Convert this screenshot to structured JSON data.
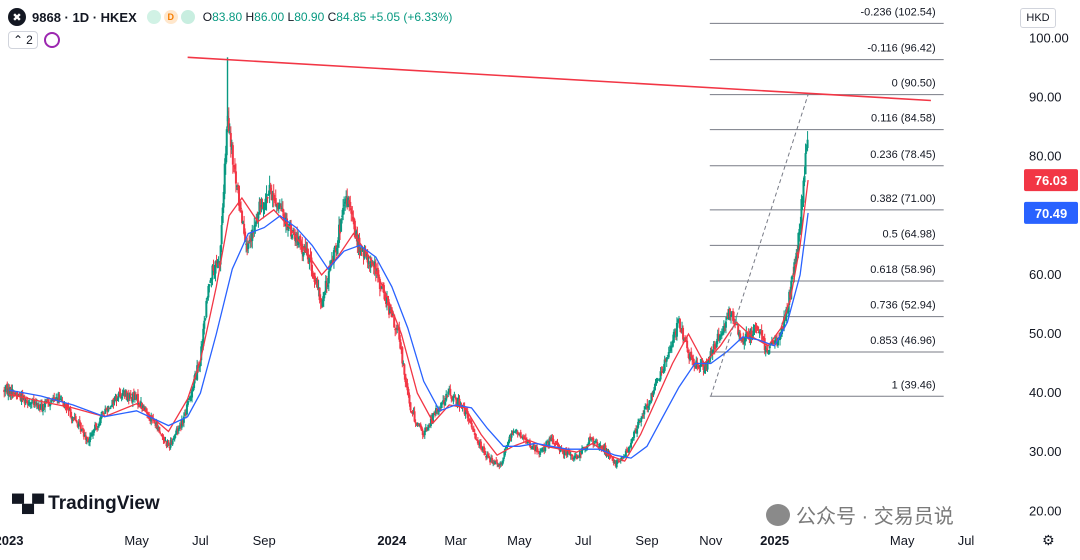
{
  "header": {
    "logo_glyph": "✖",
    "title": "9868 · 1D · HKEX",
    "badge_1": "",
    "badge_2": "D",
    "badge_3": "",
    "ohlc": {
      "o_label": "O",
      "o": "83.80",
      "h_label": "H",
      "h": "86.00",
      "l_label": "L",
      "l": "80.90",
      "c_label": "C",
      "c": "84.85",
      "change": "+5.05 (+6.33%)"
    },
    "indicator_count": "2"
  },
  "currency": "HKD",
  "watermark": "TradingView",
  "wechat_text": "公众号 · 交易员说",
  "price_badges": [
    {
      "value": "76.03",
      "color": "#f23645",
      "y": 76.03
    },
    {
      "value": "70.49",
      "color": "#2962ff",
      "y": 70.49
    }
  ],
  "chart_data": {
    "type": "line",
    "y_axis_side": "right",
    "ylim": [
      16.5,
      106.5
    ],
    "y_ticks": [
      {
        "value": 20,
        "label": "20.00"
      },
      {
        "value": 30,
        "label": "30.00"
      },
      {
        "value": 40,
        "label": "40.00"
      },
      {
        "value": 50,
        "label": "50.00"
      },
      {
        "value": 60,
        "label": "60.00"
      },
      {
        "value": 70,
        "label": "70.00"
      },
      {
        "value": 80,
        "label": "80.00"
      },
      {
        "value": 90,
        "label": "90.00"
      },
      {
        "value": 100,
        "label": "100.00"
      }
    ],
    "x_ticks": [
      {
        "label": "2023",
        "t": -1.0,
        "bold": true
      },
      {
        "label": "May",
        "t": 3.0,
        "bold": false
      },
      {
        "label": "Jul",
        "t": 5.0,
        "bold": false
      },
      {
        "label": "Sep",
        "t": 7.0,
        "bold": false
      },
      {
        "label": "2024",
        "t": 11.0,
        "bold": true
      },
      {
        "label": "Mar",
        "t": 13.0,
        "bold": false
      },
      {
        "label": "May",
        "t": 15.0,
        "bold": false
      },
      {
        "label": "Jul",
        "t": 17.0,
        "bold": false
      },
      {
        "label": "Sep",
        "t": 19.0,
        "bold": false
      },
      {
        "label": "Nov",
        "t": 21.0,
        "bold": false
      },
      {
        "label": "2025",
        "t": 23.0,
        "bold": true
      },
      {
        "label": "May",
        "t": 27.0,
        "bold": false
      },
      {
        "label": "Jul",
        "t": 29.0,
        "bold": false
      }
    ],
    "fib_levels": [
      {
        "ratio": "-0.236",
        "price": 102.54,
        "label": "-0.236 (102.54)"
      },
      {
        "ratio": "-0.116",
        "price": 96.42,
        "label": "-0.116 (96.42)"
      },
      {
        "ratio": "0",
        "price": 90.5,
        "label": "0 (90.50)"
      },
      {
        "ratio": "0.116",
        "price": 84.58,
        "label": "0.116 (84.58)"
      },
      {
        "ratio": "0.236",
        "price": 78.45,
        "label": "0.236 (78.45)"
      },
      {
        "ratio": "0.382",
        "price": 71.0,
        "label": "0.382 (71.00)"
      },
      {
        "ratio": "0.5",
        "price": 64.98,
        "label": "0.5 (64.98)"
      },
      {
        "ratio": "0.618",
        "price": 58.96,
        "label": "0.618 (58.96)"
      },
      {
        "ratio": "0.736",
        "price": 52.94,
        "label": "0.736 (52.94)"
      },
      {
        "ratio": "0.853",
        "price": 46.96,
        "label": "0.853 (46.96)"
      },
      {
        "ratio": "1",
        "price": 39.46,
        "label": "1 (39.46)"
      }
    ],
    "fib_start_t": 21.0,
    "fib_end_t": 28.3,
    "trendline": {
      "t1": 4.6,
      "y1": 96.8,
      "t2": 27.9,
      "y2": 89.5
    },
    "fib_diagonal": {
      "t1": 21.0,
      "y1": 39.46,
      "t2": 24.05,
      "y2": 90.5
    },
    "price_path": [
      [
        -1.0,
        40.5
      ],
      [
        -0.5,
        39.0
      ],
      [
        0.0,
        37.5
      ],
      [
        0.5,
        39.5
      ],
      [
        1.0,
        36.0
      ],
      [
        1.5,
        32.0
      ],
      [
        2.0,
        37.0
      ],
      [
        2.5,
        40.0
      ],
      [
        3.0,
        39.0
      ],
      [
        3.5,
        35.5
      ],
      [
        4.0,
        31.0
      ],
      [
        4.5,
        36.0
      ],
      [
        5.0,
        46.0
      ],
      [
        5.3,
        60.0
      ],
      [
        5.6,
        62.0
      ],
      [
        5.85,
        86.0
      ],
      [
        6.1,
        76.0
      ],
      [
        6.5,
        64.0
      ],
      [
        6.9,
        72.0
      ],
      [
        7.2,
        74.0
      ],
      [
        7.6,
        70.0
      ],
      [
        8.0,
        66.0
      ],
      [
        8.4,
        63.0
      ],
      [
        8.8,
        55.0
      ],
      [
        9.2,
        64.0
      ],
      [
        9.6,
        73.0
      ],
      [
        10.0,
        64.0
      ],
      [
        10.4,
        62.0
      ],
      [
        10.8,
        56.0
      ],
      [
        11.2,
        50.0
      ],
      [
        11.6,
        37.0
      ],
      [
        12.0,
        33.0
      ],
      [
        12.4,
        37.0
      ],
      [
        12.8,
        40.0
      ],
      [
        13.2,
        38.0
      ],
      [
        13.6,
        33.0
      ],
      [
        14.0,
        29.0
      ],
      [
        14.4,
        28.0
      ],
      [
        14.8,
        34.0
      ],
      [
        15.2,
        32.0
      ],
      [
        15.6,
        30.0
      ],
      [
        16.0,
        32.0
      ],
      [
        16.4,
        30.0
      ],
      [
        16.8,
        29.0
      ],
      [
        17.2,
        32.0
      ],
      [
        17.6,
        31.0
      ],
      [
        18.0,
        28.0
      ],
      [
        18.4,
        30.0
      ],
      [
        18.8,
        36.0
      ],
      [
        19.2,
        40.0
      ],
      [
        19.6,
        46.0
      ],
      [
        20.0,
        52.0
      ],
      [
        20.4,
        45.0
      ],
      [
        20.8,
        44.0
      ],
      [
        21.2,
        49.0
      ],
      [
        21.6,
        54.0
      ],
      [
        22.0,
        49.0
      ],
      [
        22.4,
        51.0
      ],
      [
        22.8,
        47.0
      ],
      [
        23.2,
        50.0
      ],
      [
        23.5,
        57.0
      ],
      [
        23.75,
        66.0
      ],
      [
        23.9,
        75.0
      ],
      [
        24.05,
        84.85
      ]
    ],
    "series": [
      {
        "name": "",
        "color": "#f23645",
        "values": [
          [
            -1.0,
            39.8
          ],
          [
            0.0,
            38.6
          ],
          [
            1.0,
            37.5
          ],
          [
            2.0,
            36.0
          ],
          [
            3.0,
            38.2
          ],
          [
            4.0,
            33.5
          ],
          [
            4.6,
            39.0
          ],
          [
            5.0,
            45.5
          ],
          [
            5.5,
            58.0
          ],
          [
            5.9,
            70.0
          ],
          [
            6.3,
            73.0
          ],
          [
            6.8,
            69.0
          ],
          [
            7.3,
            71.0
          ],
          [
            7.8,
            68.0
          ],
          [
            8.3,
            64.0
          ],
          [
            8.8,
            60.0
          ],
          [
            9.3,
            63.0
          ],
          [
            9.8,
            67.0
          ],
          [
            10.3,
            63.0
          ],
          [
            10.8,
            57.0
          ],
          [
            11.3,
            50.0
          ],
          [
            11.8,
            40.0
          ],
          [
            12.3,
            35.0
          ],
          [
            12.8,
            38.0
          ],
          [
            13.3,
            37.5
          ],
          [
            13.8,
            33.0
          ],
          [
            14.3,
            29.5
          ],
          [
            14.8,
            31.0
          ],
          [
            15.3,
            32.0
          ],
          [
            15.8,
            31.0
          ],
          [
            16.3,
            30.5
          ],
          [
            16.8,
            30.0
          ],
          [
            17.3,
            31.5
          ],
          [
            17.8,
            29.5
          ],
          [
            18.3,
            28.5
          ],
          [
            18.8,
            33.0
          ],
          [
            19.3,
            39.0
          ],
          [
            19.8,
            45.0
          ],
          [
            20.3,
            50.0
          ],
          [
            20.8,
            45.0
          ],
          [
            21.3,
            48.0
          ],
          [
            21.8,
            52.0
          ],
          [
            22.3,
            49.5
          ],
          [
            22.8,
            48.0
          ],
          [
            23.2,
            51.0
          ],
          [
            23.5,
            56.0
          ],
          [
            23.8,
            65.0
          ],
          [
            24.05,
            76.03
          ]
        ]
      },
      {
        "name": "",
        "color": "#2962ff",
        "values": [
          [
            -1.0,
            40.5
          ],
          [
            0.0,
            39.5
          ],
          [
            1.0,
            38.0
          ],
          [
            2.0,
            36.0
          ],
          [
            3.0,
            37.0
          ],
          [
            4.0,
            34.5
          ],
          [
            4.6,
            36.0
          ],
          [
            5.0,
            40.0
          ],
          [
            5.5,
            50.0
          ],
          [
            6.0,
            61.0
          ],
          [
            6.5,
            67.0
          ],
          [
            7.0,
            68.0
          ],
          [
            7.5,
            70.0
          ],
          [
            8.0,
            68.0
          ],
          [
            8.5,
            65.0
          ],
          [
            9.0,
            61.0
          ],
          [
            9.5,
            64.0
          ],
          [
            10.0,
            65.0
          ],
          [
            10.5,
            63.0
          ],
          [
            11.0,
            58.0
          ],
          [
            11.5,
            51.0
          ],
          [
            12.0,
            42.0
          ],
          [
            12.5,
            37.0
          ],
          [
            13.0,
            38.0
          ],
          [
            13.5,
            37.5
          ],
          [
            14.0,
            34.0
          ],
          [
            14.5,
            31.0
          ],
          [
            15.0,
            31.0
          ],
          [
            15.5,
            31.5
          ],
          [
            16.0,
            31.0
          ],
          [
            16.5,
            30.5
          ],
          [
            17.0,
            30.5
          ],
          [
            17.5,
            30.5
          ],
          [
            18.0,
            29.5
          ],
          [
            18.5,
            29.0
          ],
          [
            19.0,
            31.0
          ],
          [
            19.5,
            36.0
          ],
          [
            20.0,
            41.0
          ],
          [
            20.5,
            45.0
          ],
          [
            21.0,
            45.0
          ],
          [
            21.5,
            47.0
          ],
          [
            22.0,
            49.5
          ],
          [
            22.5,
            49.0
          ],
          [
            23.0,
            48.0
          ],
          [
            23.4,
            52.0
          ],
          [
            23.8,
            60.0
          ],
          [
            24.05,
            70.49
          ]
        ]
      }
    ]
  }
}
